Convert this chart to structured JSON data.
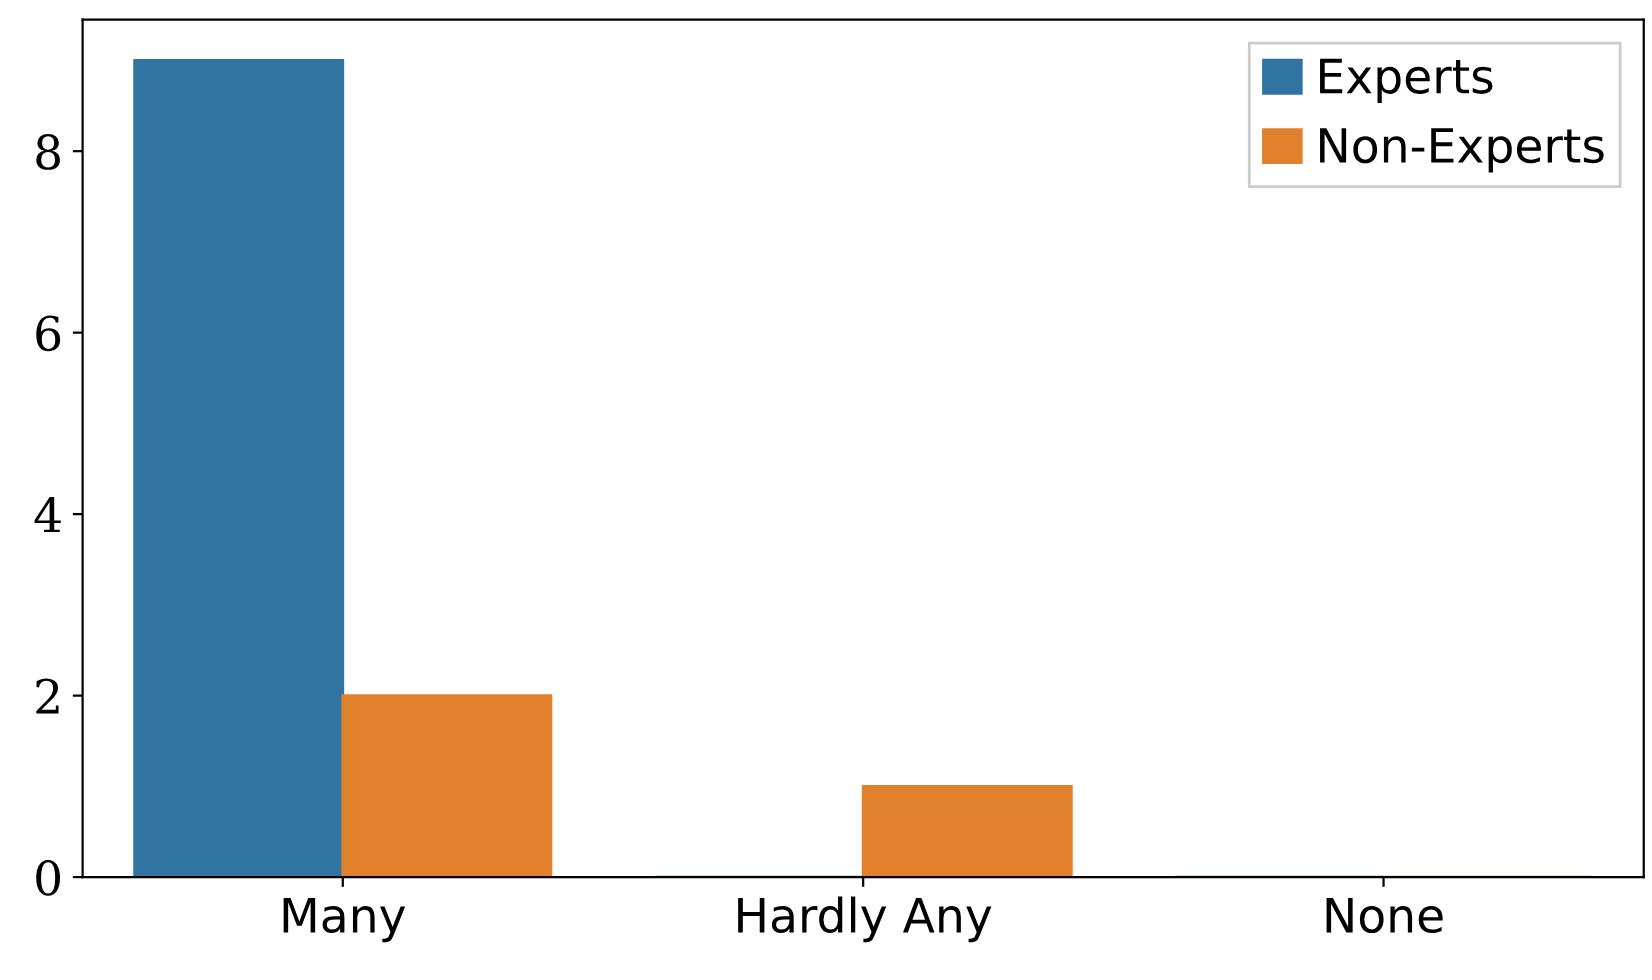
{
  "chart_data": {
    "type": "bar",
    "categories": [
      "Many",
      "Hardly Any",
      "None"
    ],
    "series": [
      {
        "name": "Experts",
        "color": "#3274a1",
        "values": [
          9,
          0,
          0
        ]
      },
      {
        "name": "Non-Experts",
        "color": "#e1812c",
        "values": [
          2,
          1,
          0
        ]
      }
    ],
    "ylim": [
      0,
      9.45
    ],
    "yticks": [
      0,
      2,
      4,
      6,
      8
    ],
    "grid": false,
    "legend": "top right"
  }
}
